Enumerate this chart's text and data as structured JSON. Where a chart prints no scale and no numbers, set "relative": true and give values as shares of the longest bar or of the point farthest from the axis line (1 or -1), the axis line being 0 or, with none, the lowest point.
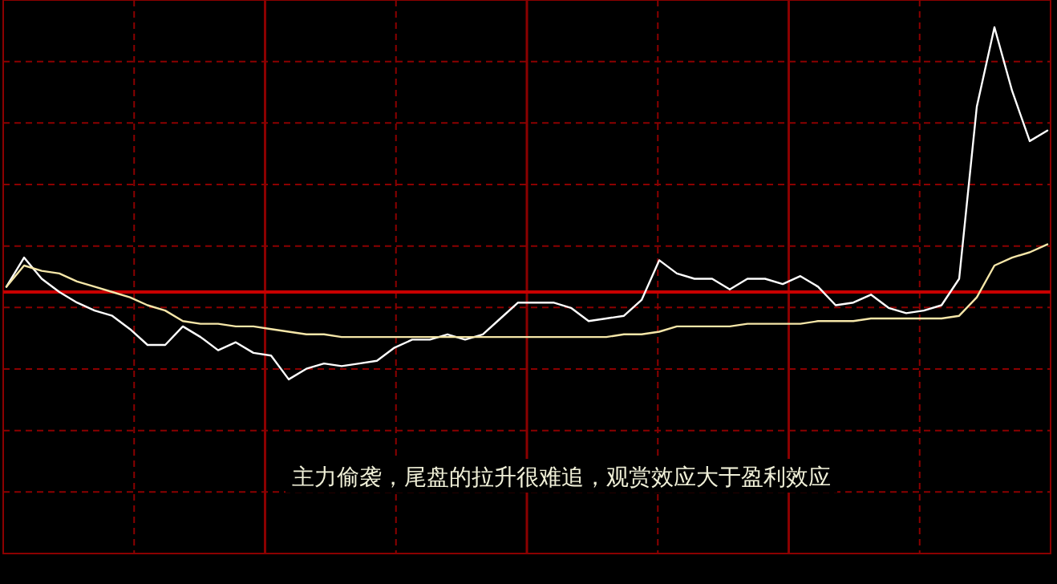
{
  "chart_data": {
    "type": "line",
    "relative": true,
    "categories": [
      null,
      null,
      null,
      null,
      null,
      null,
      null,
      null,
      null,
      null,
      null,
      null,
      null,
      null,
      null,
      null,
      null,
      null,
      null,
      null,
      null,
      null,
      null,
      null,
      null,
      null,
      null,
      null,
      null,
      null,
      null,
      null,
      null,
      null,
      null,
      null,
      null,
      null,
      null,
      null,
      null,
      null,
      null,
      null,
      null,
      null,
      null,
      null,
      null,
      null,
      null,
      null,
      null,
      null,
      null,
      null,
      null,
      null,
      null,
      null
    ],
    "series": [
      {
        "color": "#ffffff",
        "values": [
          0.02,
          0.13,
          0.05,
          0,
          -0.04,
          -0.07,
          -0.09,
          -0.14,
          -0.2,
          -0.2,
          -0.13,
          -0.17,
          -0.22,
          -0.19,
          -0.23,
          -0.24,
          -0.33,
          -0.29,
          -0.27,
          -0.28,
          -0.27,
          -0.26,
          -0.21,
          -0.18,
          -0.18,
          -0.16,
          -0.18,
          -0.16,
          -0.1,
          -0.04,
          -0.04,
          -0.04,
          -0.06,
          -0.11,
          -0.1,
          -0.09,
          -0.03,
          0.12,
          0.07,
          0.05,
          0.05,
          0.01,
          0.05,
          0.05,
          0.03,
          0.06,
          0.02,
          -0.05,
          -0.04,
          -0.01,
          -0.06,
          -0.08,
          -0.07,
          -0.05,
          0.05,
          0.7,
          1,
          0.76,
          0.57,
          0.61
        ]
      },
      {
        "color": "#f5e6a8",
        "values": [
          0.02,
          0.1,
          0.08,
          0.07,
          0.04,
          0.02,
          0,
          -0.02,
          -0.05,
          -0.07,
          -0.11,
          -0.12,
          -0.12,
          -0.13,
          -0.13,
          -0.14,
          -0.15,
          -0.16,
          -0.16,
          -0.17,
          -0.17,
          -0.17,
          -0.17,
          -0.17,
          -0.17,
          -0.17,
          -0.17,
          -0.17,
          -0.17,
          -0.17,
          -0.17,
          -0.17,
          -0.17,
          -0.17,
          -0.17,
          -0.16,
          -0.16,
          -0.15,
          -0.13,
          -0.13,
          -0.13,
          -0.13,
          -0.12,
          -0.12,
          -0.12,
          -0.12,
          -0.11,
          -0.11,
          -0.11,
          -0.1,
          -0.1,
          -0.1,
          -0.1,
          -0.1,
          -0.09,
          -0.02,
          0.1,
          0.13,
          0.15,
          0.18
        ]
      }
    ],
    "ref_lines": [
      {
        "axis": "y",
        "value": 0,
        "color": "#c80000"
      }
    ],
    "grid": true,
    "annotations": [
      "主力偷袭，尾盘的拉升很难追，观赏效应大于盈利效应"
    ]
  }
}
